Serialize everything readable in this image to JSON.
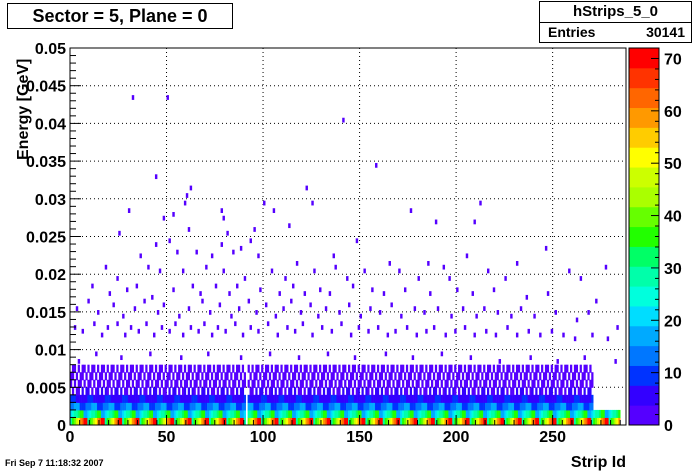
{
  "title_box": {
    "text": "Sector = 5, Plane = 0"
  },
  "stats_box": {
    "name": "hStrips_5_0",
    "entries_label": "Entries",
    "entries_value": "30141"
  },
  "footer": {
    "date": "Fri Sep  7 11:18:32 2007"
  },
  "chart_data": {
    "type": "heatmap",
    "title": "Sector = 5, Plane = 0",
    "xlabel": "Strip Id",
    "ylabel": "Energy [GeV]",
    "xlim": [
      0,
      288
    ],
    "ylim": [
      0,
      0.05
    ],
    "x_ticks": [
      0,
      50,
      100,
      150,
      200,
      250
    ],
    "y_ticks": [
      0,
      0.005,
      0.01,
      0.015,
      0.02,
      0.025,
      0.03,
      0.035,
      0.04,
      0.045,
      0.05
    ],
    "x_tick_labels": [
      "0",
      "50",
      "100",
      "150",
      "200",
      "250"
    ],
    "y_tick_labels": [
      "0",
      "0.005",
      "0.01",
      "0.015",
      "0.02",
      "0.025",
      "0.03",
      "0.035",
      "0.04",
      "0.045",
      "0.05"
    ],
    "grid": true,
    "colorbar": {
      "range": [
        0,
        72
      ],
      "ticks": [
        0,
        10,
        20,
        30,
        40,
        50,
        60,
        70
      ],
      "tick_labels": [
        "0",
        "10",
        "20",
        "30",
        "40",
        "50",
        "60",
        "70"
      ],
      "colors": [
        "#5500ff",
        "#3300ff",
        "#0033ff",
        "#0077ff",
        "#00aaff",
        "#00ddff",
        "#00ffdd",
        "#00ffaa",
        "#00ff66",
        "#22ff00",
        "#66ff00",
        "#aaff00",
        "#ccff00",
        "#ffff00",
        "#ffcc00",
        "#ff9900",
        "#ff6600",
        "#ff3300",
        "#ff0000"
      ]
    },
    "cells": [
      [
        32,
        0.0435,
        1
      ],
      [
        50,
        0.0435,
        1
      ],
      [
        141,
        0.0405,
        1
      ],
      [
        158,
        0.0345,
        1
      ],
      [
        44,
        0.033,
        1
      ],
      [
        62,
        0.0315,
        1
      ],
      [
        60,
        0.0305,
        1
      ],
      [
        122,
        0.0315,
        1
      ],
      [
        125,
        0.0295,
        1
      ],
      [
        212,
        0.0295,
        1
      ],
      [
        30,
        0.0285,
        1
      ],
      [
        48,
        0.0275,
        1
      ],
      [
        53,
        0.028,
        1
      ],
      [
        59,
        0.0295,
        1
      ],
      [
        78,
        0.0285,
        1
      ],
      [
        100,
        0.0295,
        1
      ],
      [
        105,
        0.0285,
        1
      ],
      [
        176,
        0.0285,
        1
      ],
      [
        189,
        0.027,
        1
      ],
      [
        25,
        0.0255,
        1
      ],
      [
        61,
        0.026,
        1
      ],
      [
        81,
        0.0255,
        1
      ],
      [
        95,
        0.026,
        1
      ],
      [
        113,
        0.0265,
        1
      ],
      [
        44,
        0.024,
        1
      ],
      [
        51,
        0.0245,
        1
      ],
      [
        78,
        0.024,
        1
      ],
      [
        88,
        0.0235,
        1
      ],
      [
        93,
        0.0245,
        1
      ],
      [
        148,
        0.0245,
        1
      ],
      [
        246,
        0.0235,
        1
      ],
      [
        36,
        0.0225,
        1
      ],
      [
        55,
        0.023,
        1
      ],
      [
        65,
        0.023,
        1
      ],
      [
        73,
        0.0225,
        1
      ],
      [
        84,
        0.023,
        1
      ],
      [
        97,
        0.0225,
        1
      ],
      [
        117,
        0.0215,
        1
      ],
      [
        136,
        0.0225,
        1
      ],
      [
        165,
        0.0215,
        1
      ],
      [
        185,
        0.0215,
        1
      ],
      [
        205,
        0.0225,
        1
      ],
      [
        231,
        0.0215,
        1
      ],
      [
        18,
        0.021,
        1
      ],
      [
        24,
        0.0195,
        1
      ],
      [
        40,
        0.021,
        1
      ],
      [
        46,
        0.0205,
        1
      ],
      [
        58,
        0.0205,
        1
      ],
      [
        70,
        0.021,
        1
      ],
      [
        79,
        0.0205,
        1
      ],
      [
        90,
        0.0195,
        1
      ],
      [
        104,
        0.0205,
        1
      ],
      [
        111,
        0.0195,
        1
      ],
      [
        126,
        0.0205,
        1
      ],
      [
        137,
        0.021,
        1
      ],
      [
        143,
        0.0195,
        1
      ],
      [
        152,
        0.0205,
        1
      ],
      [
        170,
        0.0205,
        1
      ],
      [
        180,
        0.0195,
        1
      ],
      [
        193,
        0.021,
        1
      ],
      [
        196,
        0.0195,
        1
      ],
      [
        216,
        0.0205,
        1
      ],
      [
        225,
        0.0195,
        1
      ],
      [
        258,
        0.0205,
        1
      ],
      [
        264,
        0.0195,
        1
      ],
      [
        11,
        0.0185,
        1
      ],
      [
        20,
        0.0175,
        1
      ],
      [
        29,
        0.018,
        1
      ],
      [
        34,
        0.0185,
        1
      ],
      [
        42,
        0.017,
        1
      ],
      [
        53,
        0.018,
        1
      ],
      [
        63,
        0.0185,
        1
      ],
      [
        67,
        0.0175,
        1
      ],
      [
        75,
        0.0185,
        1
      ],
      [
        82,
        0.0175,
        1
      ],
      [
        86,
        0.0185,
        1
      ],
      [
        98,
        0.018,
        1
      ],
      [
        108,
        0.0175,
        1
      ],
      [
        115,
        0.0185,
        1
      ],
      [
        121,
        0.0175,
        1
      ],
      [
        129,
        0.018,
        1
      ],
      [
        134,
        0.0175,
        1
      ],
      [
        146,
        0.0185,
        1
      ],
      [
        156,
        0.018,
        1
      ],
      [
        162,
        0.0175,
        1
      ],
      [
        173,
        0.018,
        1
      ],
      [
        186,
        0.0175,
        1
      ],
      [
        200,
        0.018,
        1
      ],
      [
        208,
        0.0175,
        1
      ],
      [
        219,
        0.018,
        1
      ],
      [
        236,
        0.017,
        1
      ],
      [
        247,
        0.0175,
        1
      ],
      [
        272,
        0.0165,
        1
      ],
      [
        3,
        0.0155,
        1
      ],
      [
        9,
        0.0165,
        1
      ],
      [
        14,
        0.015,
        1
      ],
      [
        22,
        0.016,
        1
      ],
      [
        27,
        0.0145,
        1
      ],
      [
        33,
        0.0155,
        1
      ],
      [
        38,
        0.0165,
        1
      ],
      [
        45,
        0.015,
        1
      ],
      [
        48,
        0.016,
        1
      ],
      [
        56,
        0.0145,
        1
      ],
      [
        61,
        0.0155,
        1
      ],
      [
        68,
        0.0165,
        1
      ],
      [
        72,
        0.015,
        1
      ],
      [
        77,
        0.016,
        1
      ],
      [
        83,
        0.0145,
        1
      ],
      [
        87,
        0.0155,
        1
      ],
      [
        92,
        0.0165,
        1
      ],
      [
        96,
        0.015,
        1
      ],
      [
        101,
        0.016,
        1
      ],
      [
        106,
        0.0145,
        1
      ],
      [
        110,
        0.0155,
        1
      ],
      [
        114,
        0.0165,
        1
      ],
      [
        119,
        0.015,
        1
      ],
      [
        124,
        0.016,
        1
      ],
      [
        128,
        0.0145,
        1
      ],
      [
        132,
        0.0155,
        1
      ],
      [
        139,
        0.015,
        1
      ],
      [
        144,
        0.016,
        1
      ],
      [
        150,
        0.0145,
        1
      ],
      [
        155,
        0.0155,
        1
      ],
      [
        160,
        0.015,
        1
      ],
      [
        166,
        0.016,
        1
      ],
      [
        171,
        0.0145,
        1
      ],
      [
        178,
        0.0155,
        1
      ],
      [
        183,
        0.015,
        1
      ],
      [
        190,
        0.0155,
        1
      ],
      [
        197,
        0.0145,
        1
      ],
      [
        203,
        0.0155,
        1
      ],
      [
        210,
        0.0145,
        1
      ],
      [
        214,
        0.0155,
        1
      ],
      [
        221,
        0.015,
        1
      ],
      [
        228,
        0.0145,
        1
      ],
      [
        233,
        0.0155,
        1
      ],
      [
        240,
        0.0145,
        1
      ],
      [
        251,
        0.015,
        1
      ],
      [
        262,
        0.014,
        1
      ],
      [
        268,
        0.015,
        1
      ],
      [
        283,
        0.013,
        1
      ],
      [
        2,
        0.013,
        1
      ],
      [
        6,
        0.0125,
        1
      ],
      [
        12,
        0.0135,
        1
      ],
      [
        16,
        0.012,
        1
      ],
      [
        19,
        0.013,
        1
      ],
      [
        24,
        0.0135,
        1
      ],
      [
        28,
        0.012,
        1
      ],
      [
        31,
        0.013,
        1
      ],
      [
        35,
        0.0125,
        1
      ],
      [
        39,
        0.0135,
        1
      ],
      [
        43,
        0.012,
        1
      ],
      [
        47,
        0.013,
        1
      ],
      [
        51,
        0.0125,
        1
      ],
      [
        54,
        0.0135,
        1
      ],
      [
        58,
        0.012,
        1
      ],
      [
        62,
        0.013,
        1
      ],
      [
        66,
        0.0125,
        1
      ],
      [
        69,
        0.0135,
        1
      ],
      [
        73,
        0.012,
        1
      ],
      [
        76,
        0.013,
        1
      ],
      [
        80,
        0.0125,
        1
      ],
      [
        85,
        0.0135,
        1
      ],
      [
        89,
        0.012,
        1
      ],
      [
        93,
        0.013,
        1
      ],
      [
        97,
        0.0125,
        1
      ],
      [
        102,
        0.0135,
        1
      ],
      [
        107,
        0.012,
        1
      ],
      [
        112,
        0.013,
        1
      ],
      [
        116,
        0.0125,
        1
      ],
      [
        120,
        0.0135,
        1
      ],
      [
        125,
        0.012,
        1
      ],
      [
        130,
        0.013,
        1
      ],
      [
        135,
        0.0125,
        1
      ],
      [
        140,
        0.0135,
        1
      ],
      [
        145,
        0.012,
        1
      ],
      [
        149,
        0.013,
        1
      ],
      [
        154,
        0.0125,
        1
      ],
      [
        159,
        0.013,
        1
      ],
      [
        164,
        0.012,
        1
      ],
      [
        168,
        0.0125,
        1
      ],
      [
        174,
        0.013,
        1
      ],
      [
        179,
        0.012,
        1
      ],
      [
        184,
        0.0125,
        1
      ],
      [
        188,
        0.013,
        1
      ],
      [
        194,
        0.012,
        1
      ],
      [
        199,
        0.0125,
        1
      ],
      [
        204,
        0.013,
        1
      ],
      [
        209,
        0.012,
        1
      ],
      [
        215,
        0.0125,
        1
      ],
      [
        220,
        0.012,
        1
      ],
      [
        226,
        0.013,
        1
      ],
      [
        231,
        0.012,
        1
      ],
      [
        237,
        0.0125,
        1
      ],
      [
        243,
        0.012,
        1
      ],
      [
        249,
        0.0125,
        1
      ],
      [
        255,
        0.012,
        1
      ],
      [
        261,
        0.0115,
        1
      ],
      [
        270,
        0.012,
        1
      ],
      [
        278,
        0.0115,
        1
      ],
      [
        4,
        0.0085,
        2
      ],
      [
        13,
        0.0095,
        2
      ],
      [
        26,
        0.009,
        2
      ],
      [
        41,
        0.0095,
        2
      ],
      [
        57,
        0.009,
        2
      ],
      [
        71,
        0.0095,
        2
      ],
      [
        88,
        0.009,
        2
      ],
      [
        103,
        0.0095,
        2
      ],
      [
        118,
        0.009,
        2
      ],
      [
        133,
        0.0095,
        2
      ],
      [
        147,
        0.009,
        2
      ],
      [
        163,
        0.0095,
        2
      ],
      [
        177,
        0.009,
        2
      ],
      [
        192,
        0.0095,
        2
      ],
      [
        207,
        0.009,
        2
      ],
      [
        222,
        0.0085,
        2
      ],
      [
        238,
        0.009,
        2
      ],
      [
        252,
        0.0085,
        2
      ],
      [
        266,
        0.009,
        2
      ],
      [
        282,
        0.0085,
        2
      ],
      [
        79,
        0.0275,
        1
      ],
      [
        209,
        0.027,
        1
      ],
      [
        277,
        0.021,
        1
      ]
    ],
    "band_profile": [
      {
        "y": 0.0005,
        "value": 55
      },
      {
        "y": 0.0015,
        "value": 28
      },
      {
        "y": 0.0025,
        "value": 14
      },
      {
        "y": 0.0035,
        "value": 7
      },
      {
        "y": 0.0045,
        "value": 4
      },
      {
        "y": 0.0055,
        "value": 2
      },
      {
        "y": 0.0065,
        "value": 1
      },
      {
        "y": 0.0075,
        "value": 1
      }
    ]
  }
}
